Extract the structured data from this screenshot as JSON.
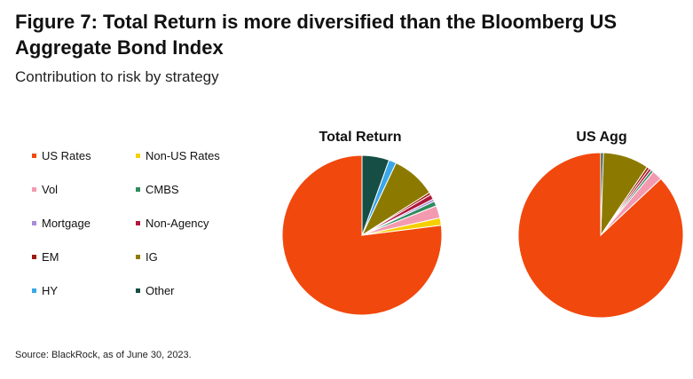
{
  "header": {
    "title": "Figure 7: Total Return is more diversified than the Bloomberg US Aggregate Bond Index",
    "subtitle": "Contribution to risk by strategy"
  },
  "legend": {
    "items": [
      {
        "label": "US Rates",
        "color": "#F1480D"
      },
      {
        "label": "Non-US Rates",
        "color": "#F5D000"
      },
      {
        "label": "Vol",
        "color": "#F49AB0"
      },
      {
        "label": "CMBS",
        "color": "#2E8B5E"
      },
      {
        "label": "Mortgage",
        "color": "#A98BD6"
      },
      {
        "label": "Non-Agency",
        "color": "#B0183C"
      },
      {
        "label": "EM",
        "color": "#9E1A0A"
      },
      {
        "label": "IG",
        "color": "#8C7A00"
      },
      {
        "label": "HY",
        "color": "#3AA7E8"
      },
      {
        "label": "Other",
        "color": "#164E45"
      }
    ]
  },
  "chart_data": [
    {
      "type": "pie",
      "title": "Total Return",
      "labels": [
        "US Rates",
        "Non-US Rates",
        "Vol",
        "CMBS",
        "Mortgage",
        "Non-Agency",
        "EM",
        "IG",
        "HY",
        "Other"
      ],
      "values": [
        77,
        1.5,
        2.5,
        1,
        0.5,
        1,
        0.5,
        9,
        1.5,
        5.5
      ]
    },
    {
      "type": "pie",
      "title": "US Agg",
      "labels": [
        "US Rates",
        "Non-US Rates",
        "Vol",
        "CMBS",
        "Mortgage",
        "Non-Agency",
        "EM",
        "IG",
        "HY",
        "Other"
      ],
      "values": [
        87,
        0,
        2,
        0.5,
        0,
        0.5,
        0.5,
        9,
        0,
        0.5
      ]
    }
  ],
  "footer": {
    "source": "Source: BlackRock, as of June 30, 2023."
  }
}
